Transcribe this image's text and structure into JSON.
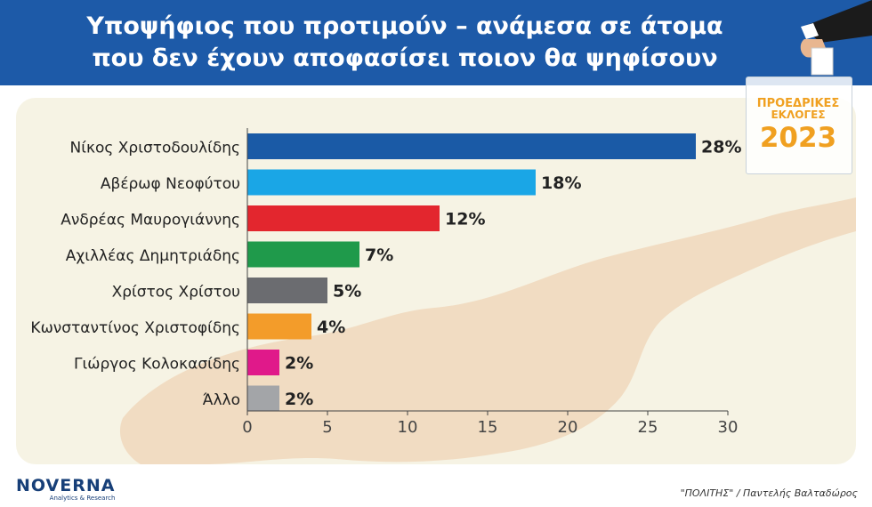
{
  "header": {
    "title_line1": "Υποψήφιος που προτιμούν – ανάμεσα σε άτομα",
    "title_line2": "που δεν έχουν αποφασίσει ποιον θα ψηφίσουν",
    "background": "#1d5aa8"
  },
  "badge": {
    "line1": "ΠΡΟΕΔΡΙΚΕΣ",
    "line2": "ΕΚΛΟΓΕΣ",
    "year": "2023",
    "color": "#f0a020"
  },
  "chart_data": {
    "type": "bar",
    "orientation": "horizontal",
    "categories": [
      "Νίκος Χριστοδουλίδης",
      "Αβέρωφ Νεοφύτου",
      "Ανδρέας Μαυρογιάννης",
      "Αχιλλέας Δημητριάδης",
      "Χρίστος Χρίστου",
      "Κωνσταντίνος Χριστοφίδης",
      "Γιώργος Κολοκασίδης",
      "Άλλο"
    ],
    "values": [
      28,
      18,
      12,
      7,
      5,
      4,
      2,
      2
    ],
    "value_labels": [
      "28%",
      "18%",
      "12%",
      "7%",
      "5%",
      "4%",
      "2%",
      "2%"
    ],
    "colors": [
      "#1a5aa6",
      "#1aa6e6",
      "#e3262e",
      "#1f9a4b",
      "#6b6c70",
      "#f39c2a",
      "#e0198a",
      "#a3a5a8"
    ],
    "xlim": [
      0,
      30
    ],
    "xticks": [
      "0",
      "5",
      "10",
      "15",
      "20",
      "25",
      "30"
    ],
    "grid": false,
    "legend": false
  },
  "footer": {
    "logo": "NOVERNA",
    "logo_sub": "Analytics & Research",
    "credit": "\"ΠΟΛΙΤΗΣ\" / Παντελής Βαλταδώρος"
  }
}
